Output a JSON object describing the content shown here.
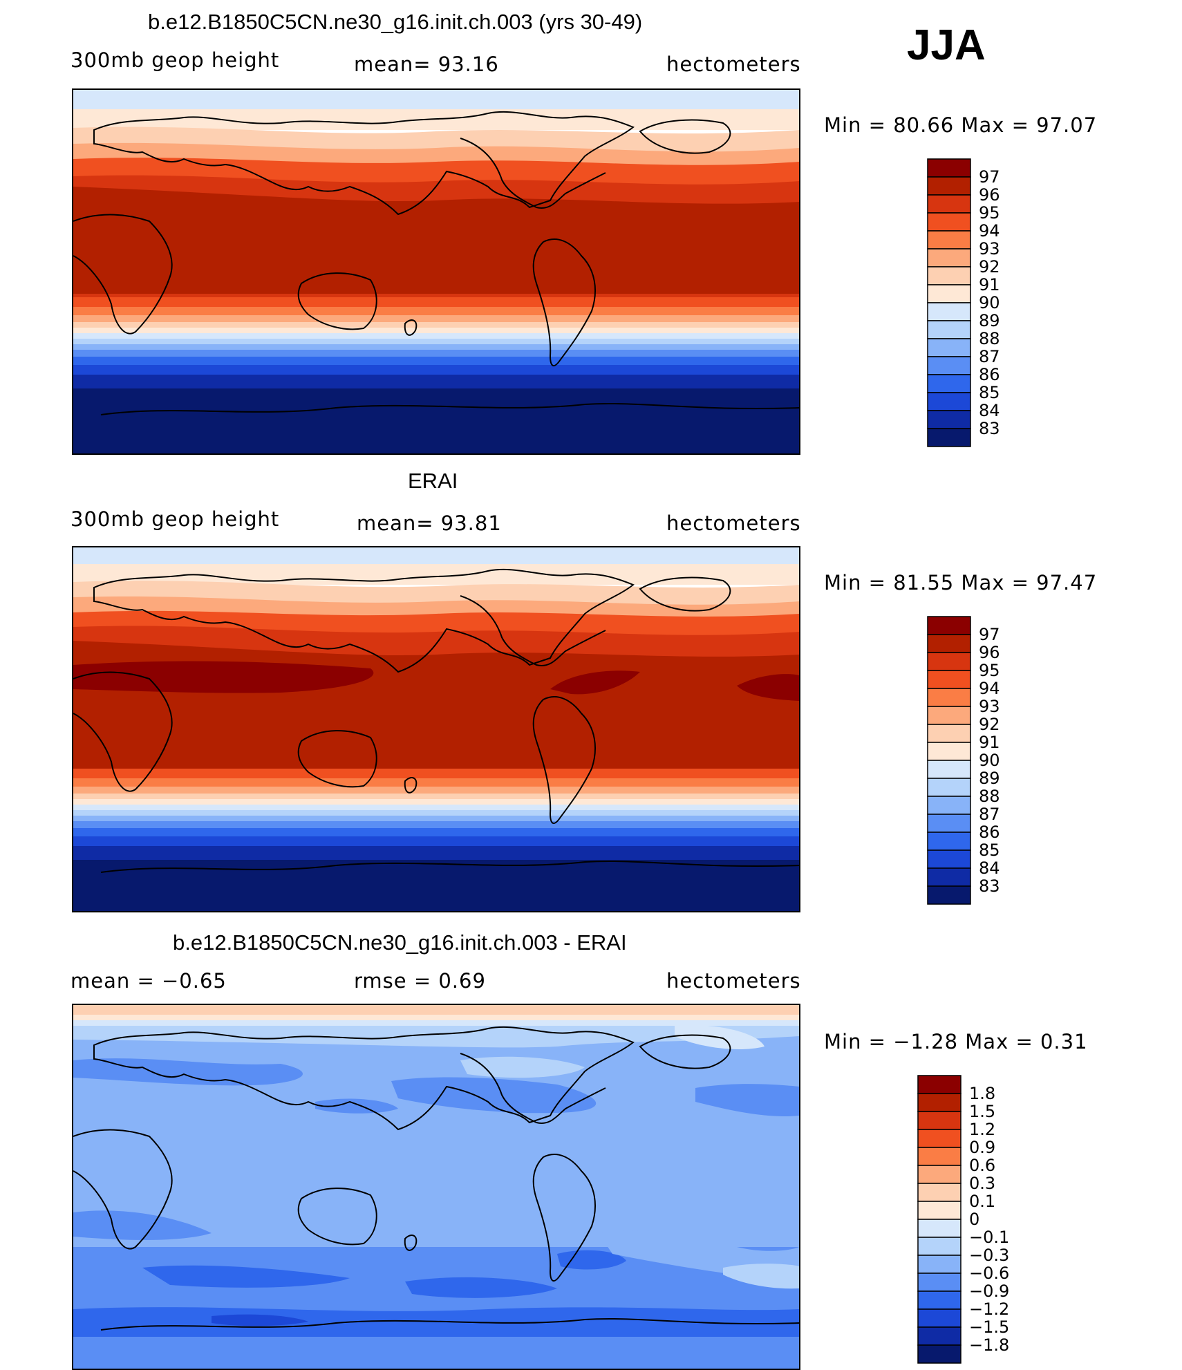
{
  "season": "JJA",
  "panels": [
    {
      "title": "b.e12.B1850C5CN.ne30_g16.init.ch.003 (yrs 30-49)",
      "left_label": "300mb  geop  height",
      "center_label": "mean=   93.16",
      "right_label": "hectometers",
      "minmax": "Min  =    80.66  Max  =    97.07",
      "colorbar": {
        "labels": [
          "97",
          "96",
          "95",
          "94",
          "93",
          "92",
          "91",
          "90",
          "89",
          "88",
          "87",
          "86",
          "85",
          "84",
          "83"
        ],
        "colors": [
          "#8b0000",
          "#b22000",
          "#d73510",
          "#f05020",
          "#fa7d45",
          "#fca97c",
          "#fdd0b2",
          "#fee8d6",
          "#d6e7fb",
          "#b4d3fa",
          "#88b3f8",
          "#5a8ef4",
          "#2f67ec",
          "#1c48d7",
          "#0f2ba5",
          "#07196d"
        ]
      }
    },
    {
      "title": "ERAI",
      "left_label": "300mb  geop  height",
      "center_label": "mean=   93.81",
      "right_label": "hectometers",
      "minmax": "Min  =    81.55  Max  =    97.47",
      "colorbar": {
        "labels": [
          "97",
          "96",
          "95",
          "94",
          "93",
          "92",
          "91",
          "90",
          "89",
          "88",
          "87",
          "86",
          "85",
          "84",
          "83"
        ],
        "colors": [
          "#8b0000",
          "#b22000",
          "#d73510",
          "#f05020",
          "#fa7d45",
          "#fca97c",
          "#fdd0b2",
          "#fee8d6",
          "#d6e7fb",
          "#b4d3fa",
          "#88b3f8",
          "#5a8ef4",
          "#2f67ec",
          "#1c48d7",
          "#0f2ba5",
          "#07196d"
        ]
      }
    },
    {
      "title": "b.e12.B1850C5CN.ne30_g16.init.ch.003 - ERAI",
      "left_label": "mean  =    −0.65",
      "center_label": "rmse  =     0.69",
      "right_label": "hectometers",
      "minmax": "Min  =    −1.28  Max  =      0.31",
      "colorbar": {
        "labels": [
          "1.8",
          "1.5",
          "1.2",
          "0.9",
          "0.6",
          "0.3",
          "0.1",
          "0",
          "−0.1",
          "−0.3",
          "−0.6",
          "−0.9",
          "−1.2",
          "−1.5",
          "−1.8"
        ],
        "colors": [
          "#8b0000",
          "#b22000",
          "#d73510",
          "#f05020",
          "#fa7d45",
          "#fca97c",
          "#fdd0b2",
          "#fee8d6",
          "#d6e7fb",
          "#b4d3fa",
          "#88b3f8",
          "#5a8ef4",
          "#2f67ec",
          "#1c48d7",
          "#0f2ba5",
          "#07196d"
        ]
      }
    }
  ]
}
